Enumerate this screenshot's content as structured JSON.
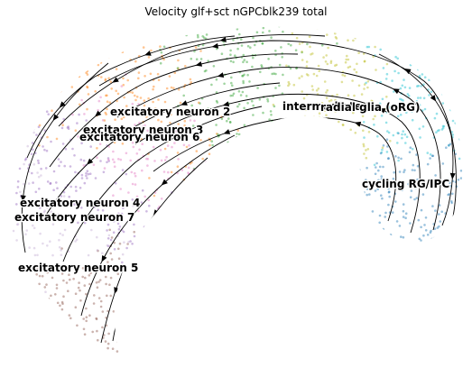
{
  "chart_data": {
    "type": "scatter",
    "title": "Velocity glf+sct nGPCblk239 total",
    "subtitle": "",
    "xlabel": "",
    "ylabel": "",
    "grid": false,
    "legend": "none",
    "clusters": [
      {
        "name": "excitatory neuron 2",
        "color": "#2ca02c"
      },
      {
        "name": "excitatory neuron 3",
        "color": "#ff7f0e"
      },
      {
        "name": "excitatory neuron 6",
        "color": "#e377c2"
      },
      {
        "name": "excitatory neuron 4",
        "color": "#9467bd"
      },
      {
        "name": "excitatory neuron 7",
        "color": "#c5b0d5"
      },
      {
        "name": "excitatory neuron 5",
        "color": "#8c564b"
      },
      {
        "name": "intermediate 1",
        "color": "#bcbd22"
      },
      {
        "name": "radial glia (oRG)",
        "color": "#17becf"
      },
      {
        "name": "cycling RG/IPC",
        "color": "#1f77b4"
      }
    ]
  }
}
